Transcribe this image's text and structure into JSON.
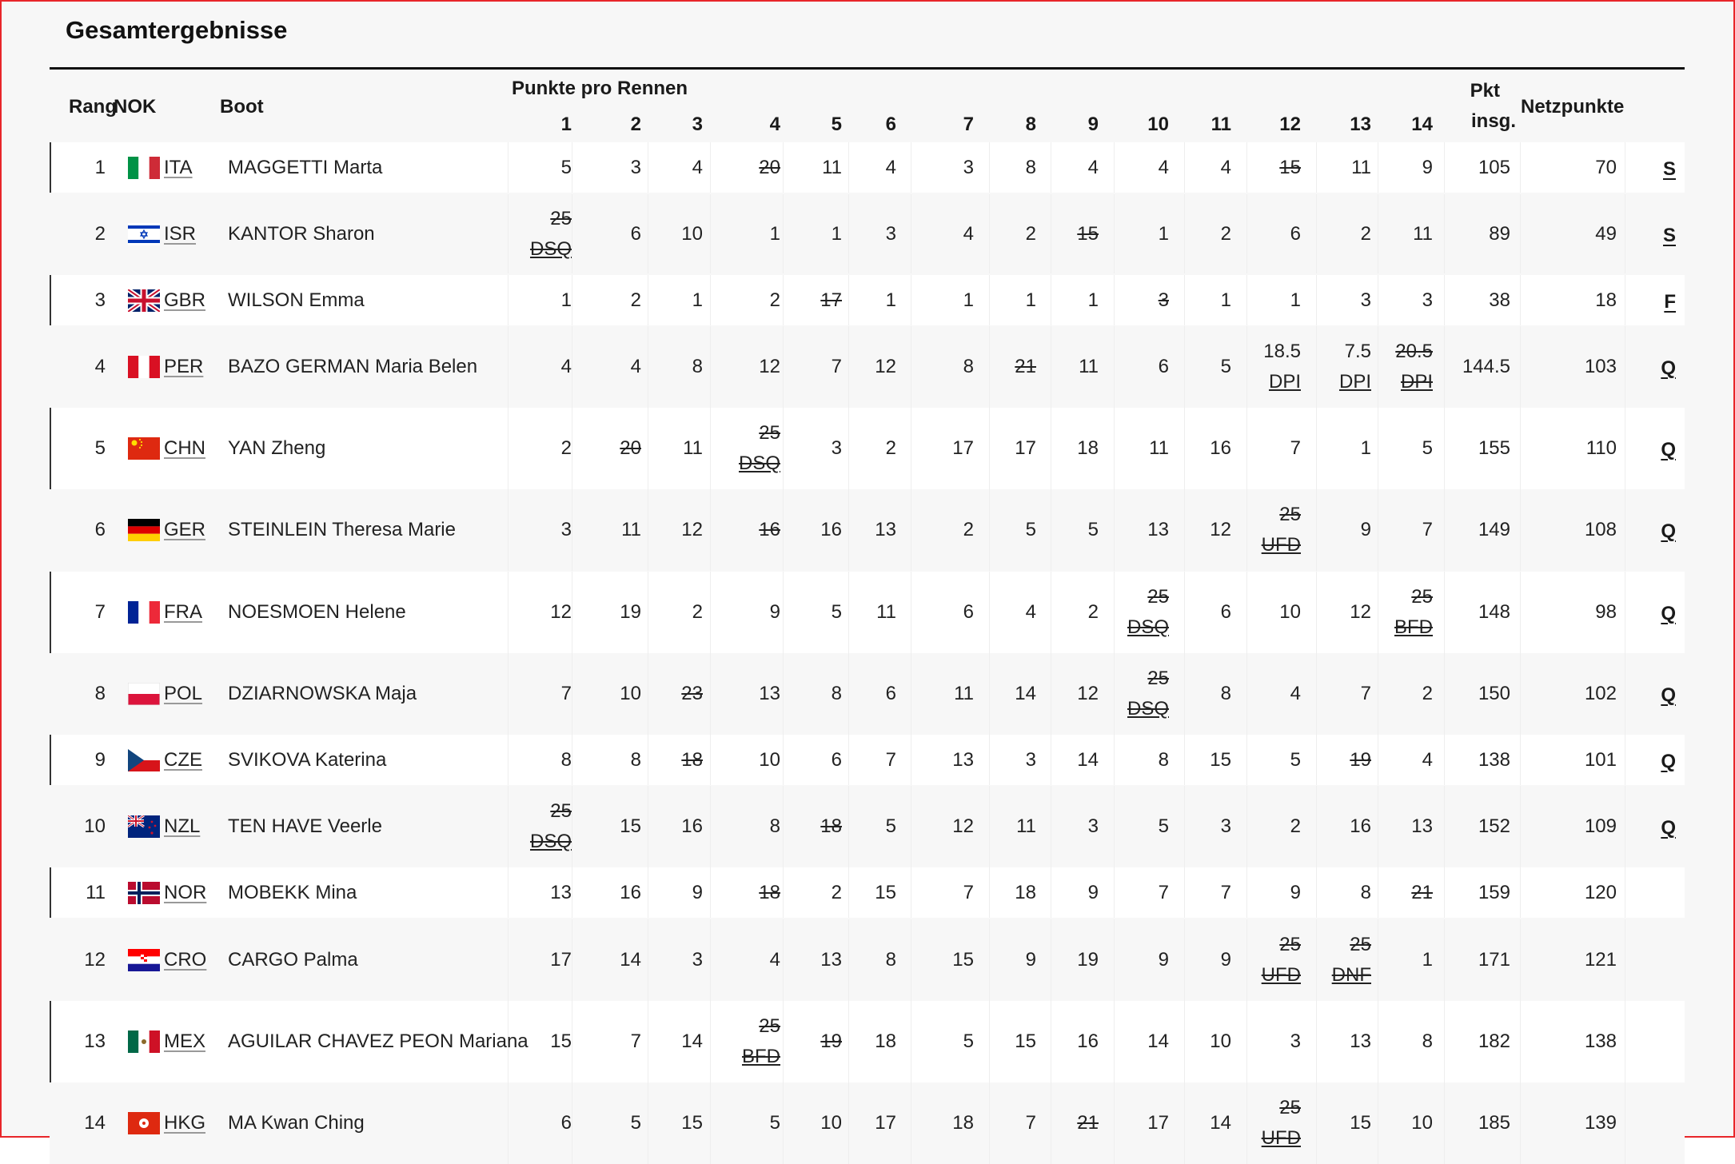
{
  "title": "Gesamtergebnisse",
  "headers": {
    "rank": "Rang",
    "noc": "NOK",
    "boat": "Boot",
    "points_per_race": "Punkte pro Rennen",
    "races": [
      "1",
      "2",
      "3",
      "4",
      "5",
      "6",
      "7",
      "8",
      "9",
      "10",
      "11",
      "12",
      "13",
      "14"
    ],
    "total_line1": "Pkt",
    "total_line2": "insg.",
    "net": "Netzpunkte"
  },
  "rows": [
    {
      "rank": "1",
      "noc": "ITA",
      "name": "MAGGETTI Marta",
      "scores": [
        {
          "v": "5"
        },
        {
          "v": "3"
        },
        {
          "v": "4"
        },
        {
          "v": "20",
          "s": true
        },
        {
          "v": "11"
        },
        {
          "v": "4"
        },
        {
          "v": "3"
        },
        {
          "v": "8"
        },
        {
          "v": "4"
        },
        {
          "v": "4"
        },
        {
          "v": "4"
        },
        {
          "v": "15",
          "s": true
        },
        {
          "v": "11"
        },
        {
          "v": "9"
        }
      ],
      "total": "105",
      "net": "70",
      "q": "S"
    },
    {
      "rank": "2",
      "noc": "ISR",
      "name": "KANTOR Sharon",
      "scores": [
        {
          "v": "25",
          "s": true,
          "c": "DSQ"
        },
        {
          "v": "6"
        },
        {
          "v": "10"
        },
        {
          "v": "1"
        },
        {
          "v": "1"
        },
        {
          "v": "3"
        },
        {
          "v": "4"
        },
        {
          "v": "2"
        },
        {
          "v": "15",
          "s": true
        },
        {
          "v": "1"
        },
        {
          "v": "2"
        },
        {
          "v": "6"
        },
        {
          "v": "2"
        },
        {
          "v": "11"
        }
      ],
      "total": "89",
      "net": "49",
      "q": "S"
    },
    {
      "rank": "3",
      "noc": "GBR",
      "name": "WILSON Emma",
      "scores": [
        {
          "v": "1"
        },
        {
          "v": "2"
        },
        {
          "v": "1"
        },
        {
          "v": "2"
        },
        {
          "v": "17",
          "s": true
        },
        {
          "v": "1"
        },
        {
          "v": "1"
        },
        {
          "v": "1"
        },
        {
          "v": "1"
        },
        {
          "v": "3",
          "s": true
        },
        {
          "v": "1"
        },
        {
          "v": "1"
        },
        {
          "v": "3"
        },
        {
          "v": "3"
        }
      ],
      "total": "38",
      "net": "18",
      "q": "F"
    },
    {
      "rank": "4",
      "noc": "PER",
      "name": "BAZO GERMAN Maria Belen",
      "scores": [
        {
          "v": "4"
        },
        {
          "v": "4"
        },
        {
          "v": "8"
        },
        {
          "v": "12"
        },
        {
          "v": "7"
        },
        {
          "v": "12"
        },
        {
          "v": "8"
        },
        {
          "v": "21",
          "s": true
        },
        {
          "v": "11"
        },
        {
          "v": "6"
        },
        {
          "v": "5"
        },
        {
          "v": "18.5",
          "c": "DPI"
        },
        {
          "v": "7.5",
          "c": "DPI"
        },
        {
          "v": "20.5",
          "s": true,
          "c": "DPI"
        }
      ],
      "total": "144.5",
      "net": "103",
      "q": "Q"
    },
    {
      "rank": "5",
      "noc": "CHN",
      "name": "YAN Zheng",
      "scores": [
        {
          "v": "2"
        },
        {
          "v": "20",
          "s": true
        },
        {
          "v": "11"
        },
        {
          "v": "25",
          "s": true,
          "c": "DSQ"
        },
        {
          "v": "3"
        },
        {
          "v": "2"
        },
        {
          "v": "17"
        },
        {
          "v": "17"
        },
        {
          "v": "18"
        },
        {
          "v": "11"
        },
        {
          "v": "16"
        },
        {
          "v": "7"
        },
        {
          "v": "1"
        },
        {
          "v": "5"
        }
      ],
      "total": "155",
      "net": "110",
      "q": "Q"
    },
    {
      "rank": "6",
      "noc": "GER",
      "name": "STEINLEIN Theresa Marie",
      "scores": [
        {
          "v": "3"
        },
        {
          "v": "11"
        },
        {
          "v": "12"
        },
        {
          "v": "16",
          "s": true
        },
        {
          "v": "16"
        },
        {
          "v": "13"
        },
        {
          "v": "2"
        },
        {
          "v": "5"
        },
        {
          "v": "5"
        },
        {
          "v": "13"
        },
        {
          "v": "12"
        },
        {
          "v": "25",
          "s": true,
          "c": "UFD"
        },
        {
          "v": "9"
        },
        {
          "v": "7"
        }
      ],
      "total": "149",
      "net": "108",
      "q": "Q"
    },
    {
      "rank": "7",
      "noc": "FRA",
      "name": "NOESMOEN Helene",
      "scores": [
        {
          "v": "12"
        },
        {
          "v": "19"
        },
        {
          "v": "2"
        },
        {
          "v": "9"
        },
        {
          "v": "5"
        },
        {
          "v": "11"
        },
        {
          "v": "6"
        },
        {
          "v": "4"
        },
        {
          "v": "2"
        },
        {
          "v": "25",
          "s": true,
          "c": "DSQ"
        },
        {
          "v": "6"
        },
        {
          "v": "10"
        },
        {
          "v": "12"
        },
        {
          "v": "25",
          "s": true,
          "c": "BFD"
        }
      ],
      "total": "148",
      "net": "98",
      "q": "Q"
    },
    {
      "rank": "8",
      "noc": "POL",
      "name": "DZIARNOWSKA Maja",
      "scores": [
        {
          "v": "7"
        },
        {
          "v": "10"
        },
        {
          "v": "23",
          "s": true
        },
        {
          "v": "13"
        },
        {
          "v": "8"
        },
        {
          "v": "6"
        },
        {
          "v": "11"
        },
        {
          "v": "14"
        },
        {
          "v": "12"
        },
        {
          "v": "25",
          "s": true,
          "c": "DSQ"
        },
        {
          "v": "8"
        },
        {
          "v": "4"
        },
        {
          "v": "7"
        },
        {
          "v": "2"
        }
      ],
      "total": "150",
      "net": "102",
      "q": "Q"
    },
    {
      "rank": "9",
      "noc": "CZE",
      "name": "SVIKOVA Katerina",
      "scores": [
        {
          "v": "8"
        },
        {
          "v": "8"
        },
        {
          "v": "18",
          "s": true
        },
        {
          "v": "10"
        },
        {
          "v": "6"
        },
        {
          "v": "7"
        },
        {
          "v": "13"
        },
        {
          "v": "3"
        },
        {
          "v": "14"
        },
        {
          "v": "8"
        },
        {
          "v": "15"
        },
        {
          "v": "5"
        },
        {
          "v": "19",
          "s": true
        },
        {
          "v": "4"
        }
      ],
      "total": "138",
      "net": "101",
      "q": "Q"
    },
    {
      "rank": "10",
      "noc": "NZL",
      "name": "TEN HAVE Veerle",
      "scores": [
        {
          "v": "25",
          "s": true,
          "c": "DSQ"
        },
        {
          "v": "15"
        },
        {
          "v": "16"
        },
        {
          "v": "8"
        },
        {
          "v": "18",
          "s": true
        },
        {
          "v": "5"
        },
        {
          "v": "12"
        },
        {
          "v": "11"
        },
        {
          "v": "3"
        },
        {
          "v": "5"
        },
        {
          "v": "3"
        },
        {
          "v": "2"
        },
        {
          "v": "16"
        },
        {
          "v": "13"
        }
      ],
      "total": "152",
      "net": "109",
      "q": "Q"
    },
    {
      "rank": "11",
      "noc": "NOR",
      "name": "MOBEKK Mina",
      "scores": [
        {
          "v": "13"
        },
        {
          "v": "16"
        },
        {
          "v": "9"
        },
        {
          "v": "18",
          "s": true
        },
        {
          "v": "2"
        },
        {
          "v": "15"
        },
        {
          "v": "7"
        },
        {
          "v": "18"
        },
        {
          "v": "9"
        },
        {
          "v": "7"
        },
        {
          "v": "7"
        },
        {
          "v": "9"
        },
        {
          "v": "8"
        },
        {
          "v": "21",
          "s": true
        }
      ],
      "total": "159",
      "net": "120",
      "q": ""
    },
    {
      "rank": "12",
      "noc": "CRO",
      "name": "CARGO Palma",
      "scores": [
        {
          "v": "17"
        },
        {
          "v": "14"
        },
        {
          "v": "3"
        },
        {
          "v": "4"
        },
        {
          "v": "13"
        },
        {
          "v": "8"
        },
        {
          "v": "15"
        },
        {
          "v": "9"
        },
        {
          "v": "19"
        },
        {
          "v": "9"
        },
        {
          "v": "9"
        },
        {
          "v": "25",
          "s": true,
          "c": "UFD"
        },
        {
          "v": "25",
          "s": true,
          "c": "DNF"
        },
        {
          "v": "1"
        }
      ],
      "total": "171",
      "net": "121",
      "q": ""
    },
    {
      "rank": "13",
      "noc": "MEX",
      "name": "AGUILAR CHAVEZ PEON Mariana",
      "scores": [
        {
          "v": "15"
        },
        {
          "v": "7"
        },
        {
          "v": "14"
        },
        {
          "v": "25",
          "s": true,
          "c": "BFD"
        },
        {
          "v": "19",
          "s": true
        },
        {
          "v": "18"
        },
        {
          "v": "5"
        },
        {
          "v": "15"
        },
        {
          "v": "16"
        },
        {
          "v": "14"
        },
        {
          "v": "10"
        },
        {
          "v": "3"
        },
        {
          "v": "13"
        },
        {
          "v": "8"
        }
      ],
      "total": "182",
      "net": "138",
      "q": ""
    },
    {
      "rank": "14",
      "noc": "HKG",
      "name": "MA Kwan Ching",
      "scores": [
        {
          "v": "6"
        },
        {
          "v": "5"
        },
        {
          "v": "15"
        },
        {
          "v": "5"
        },
        {
          "v": "10"
        },
        {
          "v": "17"
        },
        {
          "v": "18"
        },
        {
          "v": "7"
        },
        {
          "v": "21",
          "s": true
        },
        {
          "v": "17"
        },
        {
          "v": "14"
        },
        {
          "v": "25",
          "s": true,
          "c": "UFD"
        },
        {
          "v": "15"
        },
        {
          "v": "10"
        }
      ],
      "total": "185",
      "net": "139",
      "q": ""
    }
  ]
}
